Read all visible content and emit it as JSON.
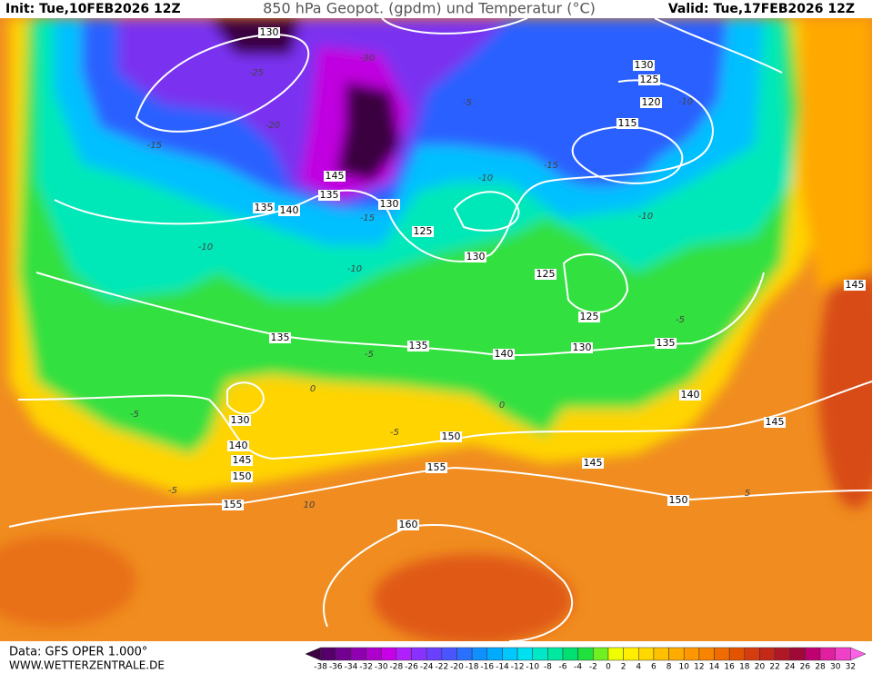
{
  "header": {
    "init": "Init: Tue,10FEB2026 12Z",
    "title": "850 hPa Geopot. (gpdm) und Temperatur (°C)",
    "valid": "Valid: Tue,17FEB2026 12Z"
  },
  "geopotential_labels": [
    "130",
    "130",
    "125",
    "120",
    "115",
    "145",
    "135",
    "140",
    "135",
    "130",
    "125",
    "130",
    "125",
    "125",
    "135",
    "135",
    "140",
    "130",
    "135",
    "140",
    "145",
    "130",
    "140",
    "145",
    "150",
    "150",
    "155",
    "145",
    "150",
    "155",
    "160",
    "145"
  ],
  "temperature_labels": [
    "-10",
    "-10",
    "-10",
    "-10",
    "-10",
    "-15",
    "-15",
    "-15",
    "-5",
    "-5",
    "-5",
    "-5",
    "-5",
    "-5",
    "0",
    "0",
    "5",
    "10",
    "-20",
    "-25",
    "-30"
  ],
  "footer": {
    "data": "Data: GFS OPER 1.000°",
    "site": "WWW.WETTERZENTRALE.DE"
  },
  "colorbar": {
    "labels": [
      "-38",
      "-36",
      "-34",
      "-32",
      "-30",
      "-28",
      "-26",
      "-24",
      "-22",
      "-20",
      "-18",
      "-16",
      "-14",
      "-12",
      "-10",
      "-8",
      "-6",
      "-4",
      "-2",
      "0",
      "2",
      "4",
      "6",
      "8",
      "10",
      "12",
      "14",
      "16",
      "18",
      "20",
      "22",
      "24",
      "26",
      "28",
      "30",
      "32"
    ],
    "colors": [
      "#3a0040",
      "#55006a",
      "#720090",
      "#9000b0",
      "#ad00cc",
      "#c800e8",
      "#b020ff",
      "#8a30ff",
      "#6a40ff",
      "#4a55ff",
      "#2a70ff",
      "#1090ff",
      "#00aaff",
      "#00c8ff",
      "#00e0f0",
      "#00e8c8",
      "#00e8a0",
      "#00e070",
      "#20e040",
      "#70f020",
      "#f0ff00",
      "#ffee00",
      "#ffd800",
      "#ffc000",
      "#ffac00",
      "#ff9800",
      "#f88400",
      "#f06c00",
      "#e45400",
      "#d63c10",
      "#c42818",
      "#b01828",
      "#a00838",
      "#c00070",
      "#e020a0",
      "#f040c8",
      "#ff60e8"
    ]
  }
}
